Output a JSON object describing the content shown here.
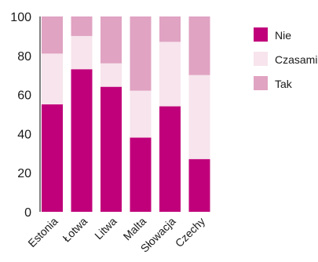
{
  "chart_data": {
    "type": "bar",
    "stacked": true,
    "categories": [
      "Estonia",
      "Łotwa",
      "Litwa",
      "Malta",
      "Słowacja",
      "Czechy"
    ],
    "series": [
      {
        "name": "Nie",
        "values": [
          55,
          73,
          64,
          38,
          54,
          27
        ],
        "color": "#c0007a"
      },
      {
        "name": "Czasami",
        "values": [
          26,
          17,
          12,
          24,
          33,
          43
        ],
        "color": "#f7e4ec"
      },
      {
        "name": "Tak",
        "values": [
          19,
          10,
          24,
          38,
          13,
          30
        ],
        "color": "#e0a3c2"
      }
    ],
    "ylim": [
      0,
      100
    ],
    "yticks": [
      0,
      20,
      40,
      60,
      80,
      100
    ],
    "legend_position": "right",
    "grid": false
  }
}
